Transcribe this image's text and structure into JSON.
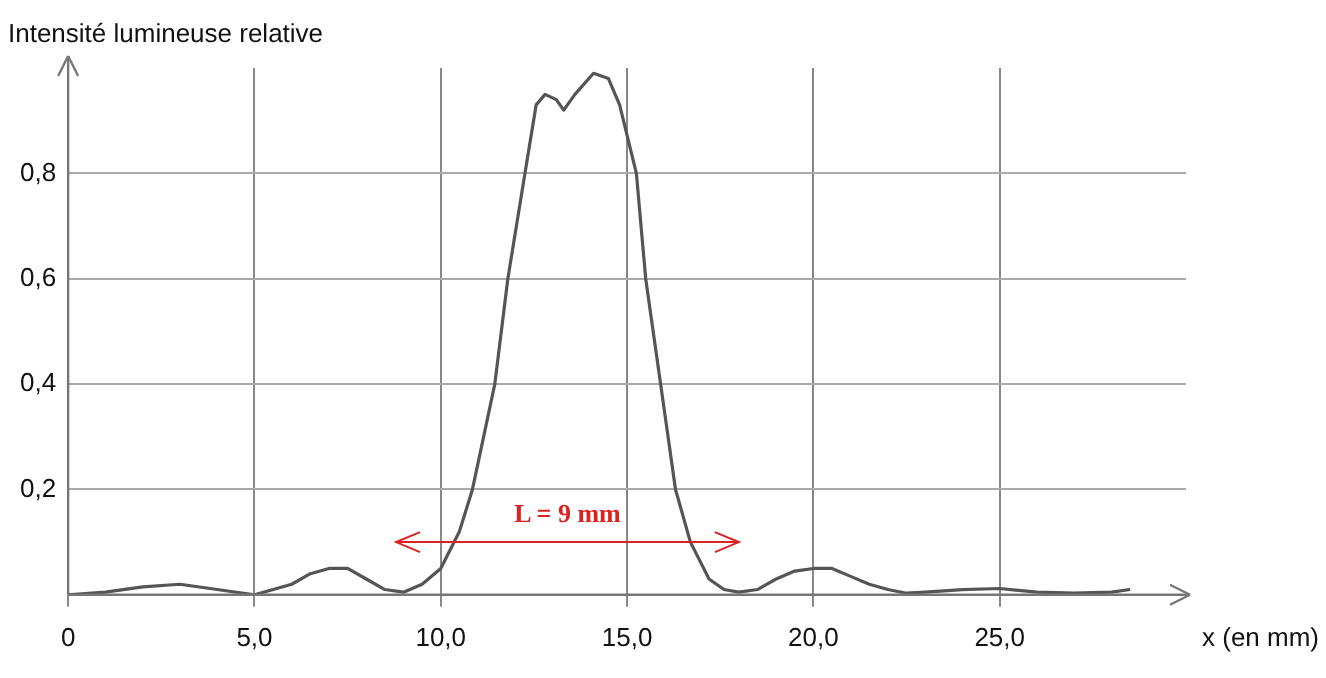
{
  "chart_data": {
    "type": "line",
    "xlabel": "x (en mm)",
    "ylabel": "Intensité lumineuse relative",
    "xlim": [
      0,
      30
    ],
    "ylim": [
      0,
      1
    ],
    "xticks": [
      0,
      {
        "value": 5,
        "label": "5,0"
      },
      {
        "value": 10,
        "label": "10,0"
      },
      {
        "value": 15,
        "label": "15,0"
      },
      {
        "value": 20,
        "label": "20,0"
      },
      {
        "value": 25,
        "label": "25,0"
      }
    ],
    "yticks": [
      {
        "value": 0,
        "label": null
      },
      {
        "value": 0.2,
        "label": "0,2"
      },
      {
        "value": 0.4,
        "label": "0,4"
      },
      {
        "value": 0.6,
        "label": "0,6"
      },
      {
        "value": 0.8,
        "label": "0,8"
      }
    ],
    "grid": true,
    "series": [
      {
        "color": "#555555",
        "x": [
          0,
          1,
          2,
          3,
          4,
          5,
          6,
          6.5,
          7,
          7.5,
          8,
          8.5,
          9,
          9.5,
          10,
          10.5,
          10.85,
          11.45,
          11.8,
          12.26,
          12.56,
          12.8,
          13.1,
          13.3,
          13.6,
          14.1,
          14.5,
          14.8,
          15.25,
          15.5,
          15.9,
          16.3,
          16.7,
          17.2,
          17.6,
          18,
          18.5,
          19,
          19.5,
          20,
          20.5,
          21,
          21.5,
          22,
          22.5,
          23,
          24,
          25,
          26,
          27,
          28,
          28.5
        ],
        "values": [
          0,
          0.005,
          0.015,
          0.02,
          0.01,
          0,
          0.02,
          0.04,
          0.05,
          0.05,
          0.03,
          0.01,
          0.005,
          0.02,
          0.05,
          0.12,
          0.2,
          0.4,
          0.6,
          0.8,
          0.93,
          0.95,
          0.94,
          0.92,
          0.95,
          0.99,
          0.98,
          0.93,
          0.8,
          0.6,
          0.4,
          0.2,
          0.1,
          0.03,
          0.01,
          0.005,
          0.01,
          0.03,
          0.045,
          0.05,
          0.05,
          0.035,
          0.02,
          0.01,
          0.003,
          0.005,
          0.01,
          0.012,
          0.005,
          0.003,
          0.005,
          0.01
        ]
      }
    ],
    "annotations": [
      "L = 9 mm"
    ]
  }
}
